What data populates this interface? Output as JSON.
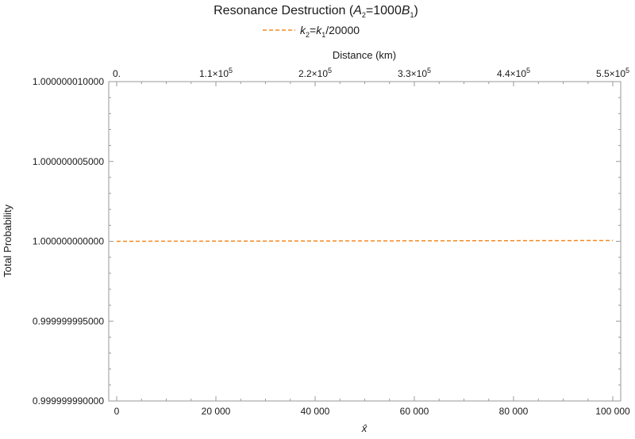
{
  "chart_data": {
    "type": "line",
    "title": {
      "prefix": "Resonance Destruction (",
      "var_a": "A",
      "sub_a": "2",
      "mid": "=1000",
      "var_b": "B",
      "sub_b": "1",
      "suffix": ")"
    },
    "legend_placement": "top-center",
    "series": [
      {
        "name": {
          "var1": "k",
          "sub1": "2",
          "eq": "=",
          "var2": "k",
          "sub2": "1",
          "rest": "/20000"
        },
        "color": "#f08a24",
        "dash": "dashed",
        "x": [
          0,
          20000,
          40000,
          60000,
          80000,
          100000
        ],
        "y": [
          1.0,
          1.00000000001,
          1.00000000002,
          1.00000000003,
          1.00000000004,
          1.00000000005
        ]
      }
    ],
    "xlabel": "x̂",
    "ylabel": "Total Probability",
    "x2label": "Distance (km)",
    "xlim": [
      0,
      100000
    ],
    "ylim": [
      0.99999999,
      1.00000001
    ],
    "xticks": [
      {
        "value": 0,
        "label": "0"
      },
      {
        "value": 20000,
        "label": "20 000"
      },
      {
        "value": 40000,
        "label": "40 000"
      },
      {
        "value": 60000,
        "label": "60 000"
      },
      {
        "value": 80000,
        "label": "80 000"
      },
      {
        "value": 100000,
        "label": "100 000"
      }
    ],
    "yticks": [
      {
        "value": 0.99999999,
        "label": "0.999999990000"
      },
      {
        "value": 0.999999995,
        "label": "0.999999995000"
      },
      {
        "value": 1.0,
        "label": "1.000000000000"
      },
      {
        "value": 1.000000005,
        "label": "1.000000005000"
      },
      {
        "value": 1.00000001,
        "label": "1.000000010000"
      }
    ],
    "x2ticks": [
      {
        "value": 0,
        "mantissa": "0.",
        "exp": ""
      },
      {
        "value": 20000,
        "mantissa": "1.1×10",
        "exp": "5"
      },
      {
        "value": 40000,
        "mantissa": "2.2×10",
        "exp": "5"
      },
      {
        "value": 60000,
        "mantissa": "3.3×10",
        "exp": "5"
      },
      {
        "value": 80000,
        "mantissa": "4.4×10",
        "exp": "5"
      },
      {
        "value": 100000,
        "mantissa": "5.5×10",
        "exp": "5"
      }
    ],
    "frame_color": "#9a9a9a",
    "grid": false
  }
}
